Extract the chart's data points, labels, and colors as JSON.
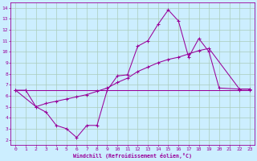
{
  "xlabel": "Windchill (Refroidissement éolien,°C)",
  "bg_color": "#cceeff",
  "grid_color": "#aaccbb",
  "line_color": "#990099",
  "xlim": [
    -0.5,
    23.5
  ],
  "ylim": [
    1.5,
    14.5
  ],
  "xticks": [
    0,
    1,
    2,
    3,
    4,
    5,
    6,
    7,
    8,
    9,
    10,
    11,
    12,
    13,
    14,
    15,
    16,
    17,
    18,
    19,
    20,
    21,
    22,
    23
  ],
  "yticks": [
    2,
    3,
    4,
    5,
    6,
    7,
    8,
    9,
    10,
    11,
    12,
    13,
    14
  ],
  "line1_x": [
    0,
    1,
    2,
    3,
    4,
    5,
    6,
    7,
    8,
    9,
    10,
    11,
    12,
    13,
    14,
    15,
    16,
    17,
    18,
    19,
    20,
    22,
    23
  ],
  "line1_y": [
    6.5,
    6.5,
    5.0,
    4.5,
    3.3,
    3.0,
    2.2,
    3.3,
    3.3,
    6.5,
    7.8,
    7.9,
    10.5,
    11.0,
    12.5,
    13.8,
    12.8,
    9.5,
    11.2,
    10.0,
    6.7,
    6.6,
    6.6
  ],
  "line2_x": [
    0,
    2,
    3,
    4,
    5,
    6,
    7,
    8,
    9,
    10,
    11,
    12,
    13,
    14,
    15,
    16,
    17,
    18,
    19,
    22,
    23
  ],
  "line2_y": [
    6.5,
    5.0,
    5.3,
    5.5,
    5.7,
    5.9,
    6.1,
    6.4,
    6.7,
    7.2,
    7.6,
    8.2,
    8.6,
    9.0,
    9.3,
    9.5,
    9.8,
    10.1,
    10.3,
    6.6,
    6.6
  ],
  "line3_x": [
    0,
    1,
    22,
    23
  ],
  "line3_y": [
    6.5,
    6.5,
    6.5,
    6.5
  ]
}
